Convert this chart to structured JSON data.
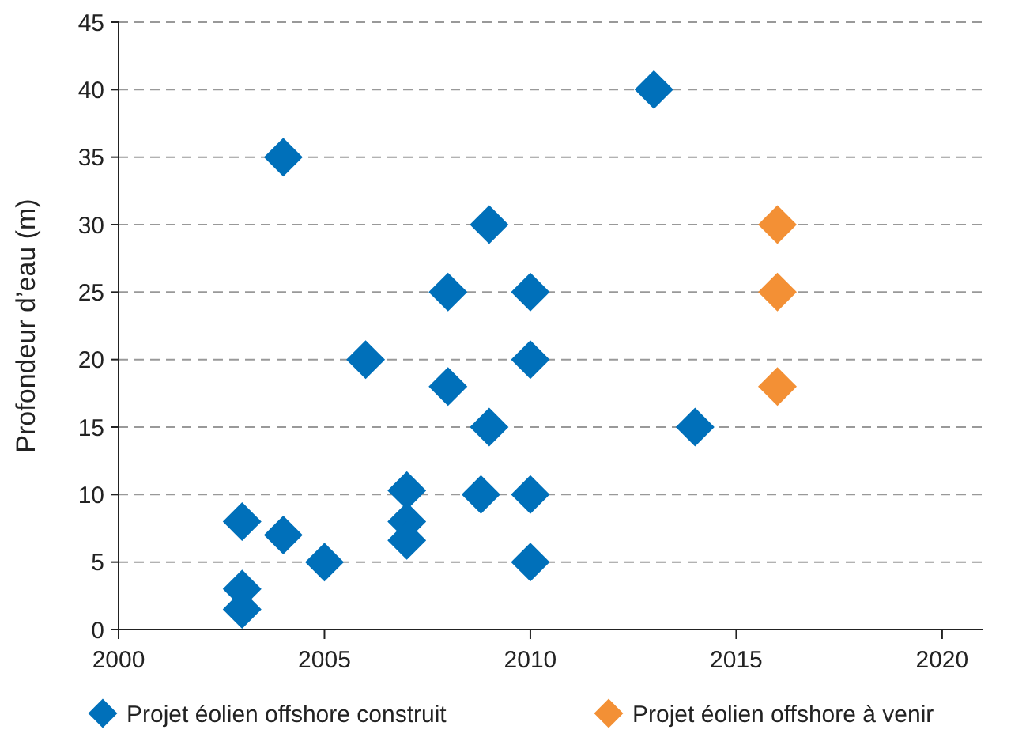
{
  "chart_data": {
    "type": "scatter",
    "ylabel": "Profondeur d’eau (m)",
    "xlim": [
      2000,
      2021
    ],
    "xticks": [
      2000,
      2005,
      2010,
      2015,
      2020
    ],
    "ylim": [
      0,
      45
    ],
    "yticks": [
      0,
      5,
      10,
      15,
      20,
      25,
      30,
      35,
      40,
      45
    ],
    "grid": "y",
    "legend": "bottom",
    "marker": "diamond",
    "series": [
      {
        "name": "Projet éolien offshore construit",
        "color": "#0070ba",
        "x": [
          2003,
          2003,
          2003,
          2004,
          2004,
          2005,
          2006,
          2007,
          2007,
          2007,
          2008,
          2008,
          2009,
          2009,
          2008.8,
          2010,
          2010,
          2010,
          2010,
          2013,
          2014
        ],
        "values": [
          8,
          3,
          1.5,
          7,
          35,
          5,
          20,
          10.3,
          8,
          6.6,
          25,
          18,
          30,
          15,
          10,
          25,
          20,
          10,
          5,
          40,
          15
        ]
      },
      {
        "name": "Projet éolien offshore à venir",
        "color": "#f39035",
        "x": [
          2016,
          2016,
          2016
        ],
        "values": [
          30,
          25,
          18
        ]
      }
    ]
  }
}
